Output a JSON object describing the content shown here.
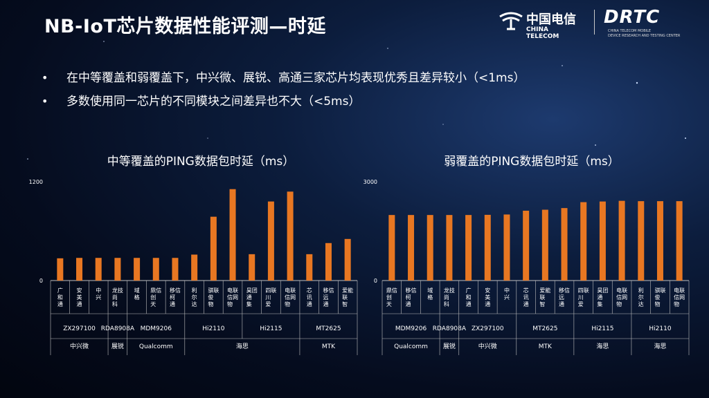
{
  "title": "NB-IoT芯片数据性能评测—时延",
  "bullets": [
    "在中等覆盖和弱覆盖下，中兴微、展锐、高通三家芯片均表现优秀且差异较小（<1ms）",
    "多数使用同一芯片的不同模块之间差异也不大（<5ms）"
  ],
  "logo_ct": {
    "cn": "中国电信",
    "en": "CHINA TELECOM"
  },
  "logo_drtc": {
    "mark": "DRTC",
    "sub1": "CHINA TELECOM MOBILE",
    "sub2": "DEVICE RESEARCH AND TESTING CENTER"
  },
  "colors": {
    "bar": "#e87722",
    "axis": "#bfbfbf"
  },
  "chart_data": [
    {
      "type": "bar",
      "title": "中等覆盖的PING数据包时延（ms）",
      "ylim": [
        0,
        1200
      ],
      "yticks": [
        "0",
        "1200"
      ],
      "categories": [
        "广和通",
        "安美通",
        "中兴",
        "龙尚科技",
        "域格",
        "鼎创天信",
        "移柯通信",
        "利尔达",
        "骐俊物联",
        "电信物联网",
        "昊通集团",
        "四川爱联",
        "电信物联网",
        "芯讯通",
        "移远通信",
        "爱联智能"
      ],
      "values": [
        270,
        275,
        275,
        275,
        275,
        275,
        275,
        315,
        775,
        1110,
        320,
        960,
        1080,
        320,
        455,
        505
      ],
      "chip_groups": [
        {
          "label": "ZX297100",
          "count": 3
        },
        {
          "label": "RDA8908A",
          "count": 1
        },
        {
          "label": "MDM9206",
          "count": 3
        },
        {
          "label": "Hi2110",
          "count": 3
        },
        {
          "label": "Hi2115",
          "count": 3
        },
        {
          "label": "MT2625",
          "count": 3
        }
      ],
      "vendor_groups": [
        {
          "label": "中兴微",
          "count": 3
        },
        {
          "label": "展锐",
          "count": 1
        },
        {
          "label": "Qualcomm",
          "count": 3
        },
        {
          "label": "海思",
          "count": 6
        },
        {
          "label": "MTK",
          "count": 3
        }
      ]
    },
    {
      "type": "bar",
      "title": "弱覆盖的PING数据包时延（ms）",
      "ylim": [
        0,
        3000
      ],
      "yticks": [
        "0",
        "3000"
      ],
      "categories": [
        "鼎创天信",
        "移柯通信",
        "域格",
        "龙尚科技",
        "广和通",
        "安美通",
        "中兴",
        "芯讯通",
        "爱联智能",
        "移远通信",
        "四川爱联",
        "昊通集团",
        "电信物联网",
        "利尔达",
        "骐俊物联",
        "电信物联网"
      ],
      "values": [
        1990,
        1990,
        1990,
        1990,
        1990,
        1995,
        2005,
        2120,
        2150,
        2200,
        2380,
        2400,
        2420,
        2410,
        2410,
        2410
      ],
      "chip_groups": [
        {
          "label": "MDM9206",
          "count": 3
        },
        {
          "label": "RDA8908A",
          "count": 1
        },
        {
          "label": "ZX297100",
          "count": 3
        },
        {
          "label": "MT2625",
          "count": 3
        },
        {
          "label": "Hi2115",
          "count": 3
        },
        {
          "label": "Hi2110",
          "count": 3
        }
      ],
      "vendor_groups": [
        {
          "label": "Qualcomm",
          "count": 3
        },
        {
          "label": "展锐",
          "count": 1
        },
        {
          "label": "中兴微",
          "count": 3
        },
        {
          "label": "MTK",
          "count": 3
        },
        {
          "label": "海思",
          "count": 3
        },
        {
          "label": "海思",
          "count": 3
        }
      ]
    }
  ]
}
